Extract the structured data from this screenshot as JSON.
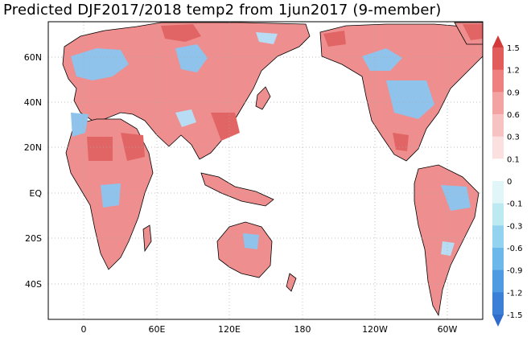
{
  "title": "Predicted DJF2017/2018 temp2 from 1jun2017 (9-member)",
  "map": {
    "lat_ticks": [
      "60N",
      "40N",
      "20N",
      "EQ",
      "20S",
      "40S"
    ],
    "lon_ticks": [
      "0",
      "60E",
      "120E",
      "180",
      "120W",
      "60W"
    ]
  },
  "colorbar": {
    "levels": [
      "1.5",
      "1.2",
      "0.9",
      "0.6",
      "0.3",
      "0.1",
      "0",
      "-0.1",
      "-0.3",
      "-0.6",
      "-0.9",
      "-1.2",
      "-1.5"
    ],
    "colors": [
      "#d33a3a",
      "#e25c5c",
      "#ee8080",
      "#f4a3a3",
      "#f7c2c2",
      "#fbe0e0",
      "#ffffff",
      "#e0f6f8",
      "#bde9f3",
      "#94d3ef",
      "#6db8ea",
      "#4f9be2",
      "#3b7fd6",
      "#2f6ccc"
    ]
  },
  "palette": {
    "land_warm": "#ee8e8e",
    "land_warm_strong": "#e26565",
    "land_cool": "#8fc3ec",
    "land_neutral": "#ffffff",
    "border": "#000000",
    "grid": "#aaaaaa"
  }
}
